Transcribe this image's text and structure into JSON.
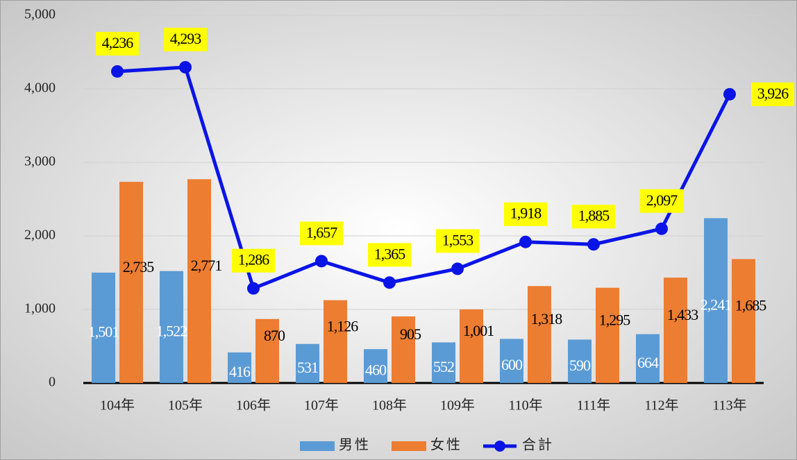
{
  "chart_data": {
    "type": "bar",
    "categories": [
      "104年",
      "105年",
      "106年",
      "107年",
      "108年",
      "109年",
      "110年",
      "111年",
      "112年",
      "113年"
    ],
    "series": [
      {
        "name": "男性",
        "color": "#5b9bd5",
        "type": "bar",
        "values": [
          1501,
          1522,
          416,
          531,
          460,
          552,
          600,
          590,
          664,
          2241
        ],
        "value_labels": [
          "1,501",
          "1,522",
          "416",
          "531",
          "460",
          "552",
          "600",
          "590",
          "664",
          "2,241"
        ]
      },
      {
        "name": "女性",
        "color": "#ed7d31",
        "type": "bar",
        "values": [
          2735,
          2771,
          870,
          1126,
          905,
          1001,
          1318,
          1295,
          1433,
          1685
        ],
        "value_labels": [
          "2,735",
          "2,771",
          "870",
          "1,126",
          "905",
          "1,001",
          "1,318",
          "1,295",
          "1,433",
          "1,685"
        ]
      },
      {
        "name": "合計",
        "color": "#0a14e6",
        "type": "line",
        "values": [
          4236,
          4293,
          1286,
          1657,
          1365,
          1553,
          1918,
          1885,
          2097,
          3926
        ],
        "value_labels": [
          "4,236",
          "4,293",
          "1,286",
          "1,657",
          "1,365",
          "1,553",
          "1,918",
          "1,885",
          "2,097",
          "3,926"
        ]
      }
    ],
    "ylim": [
      0,
      5000
    ],
    "yticks": [
      0,
      {
        "value": 1000,
        "label": "1,000"
      },
      {
        "value": 2000,
        "label": "2,000"
      },
      {
        "value": 3000,
        "label": "3,000"
      },
      {
        "value": 4000,
        "label": "4,000"
      },
      {
        "value": 5000,
        "label": "5,000"
      }
    ],
    "grid": true,
    "legend": "bottom"
  }
}
